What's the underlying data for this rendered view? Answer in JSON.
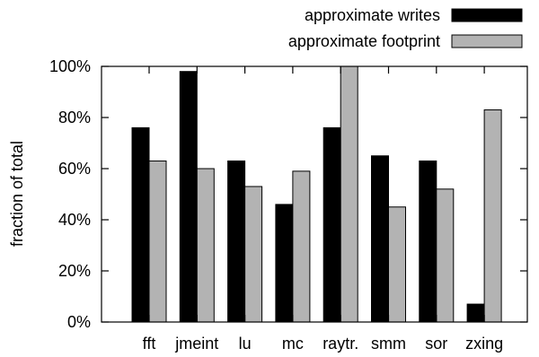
{
  "chart_data": {
    "type": "bar",
    "categories": [
      "fft",
      "jmeint",
      "lu",
      "mc",
      "raytr.",
      "smm",
      "sor",
      "zxing"
    ],
    "series": [
      {
        "name": "approximate writes",
        "color": "#000000",
        "values": [
          76,
          98,
          63,
          46,
          76,
          65,
          63,
          7
        ]
      },
      {
        "name": "approximate footprint",
        "color": "#b3b3b3",
        "values": [
          63,
          60,
          53,
          59,
          100,
          45,
          52,
          83
        ]
      }
    ],
    "ylabel": "fraction of total",
    "xlabel": "",
    "ylim": [
      0,
      100
    ],
    "yticks": [
      "0%",
      "20%",
      "40%",
      "60%",
      "80%",
      "100%"
    ],
    "ytick_values": [
      0,
      20,
      40,
      60,
      80,
      100
    ],
    "grid": false,
    "legend_position": "top-right-outside"
  }
}
